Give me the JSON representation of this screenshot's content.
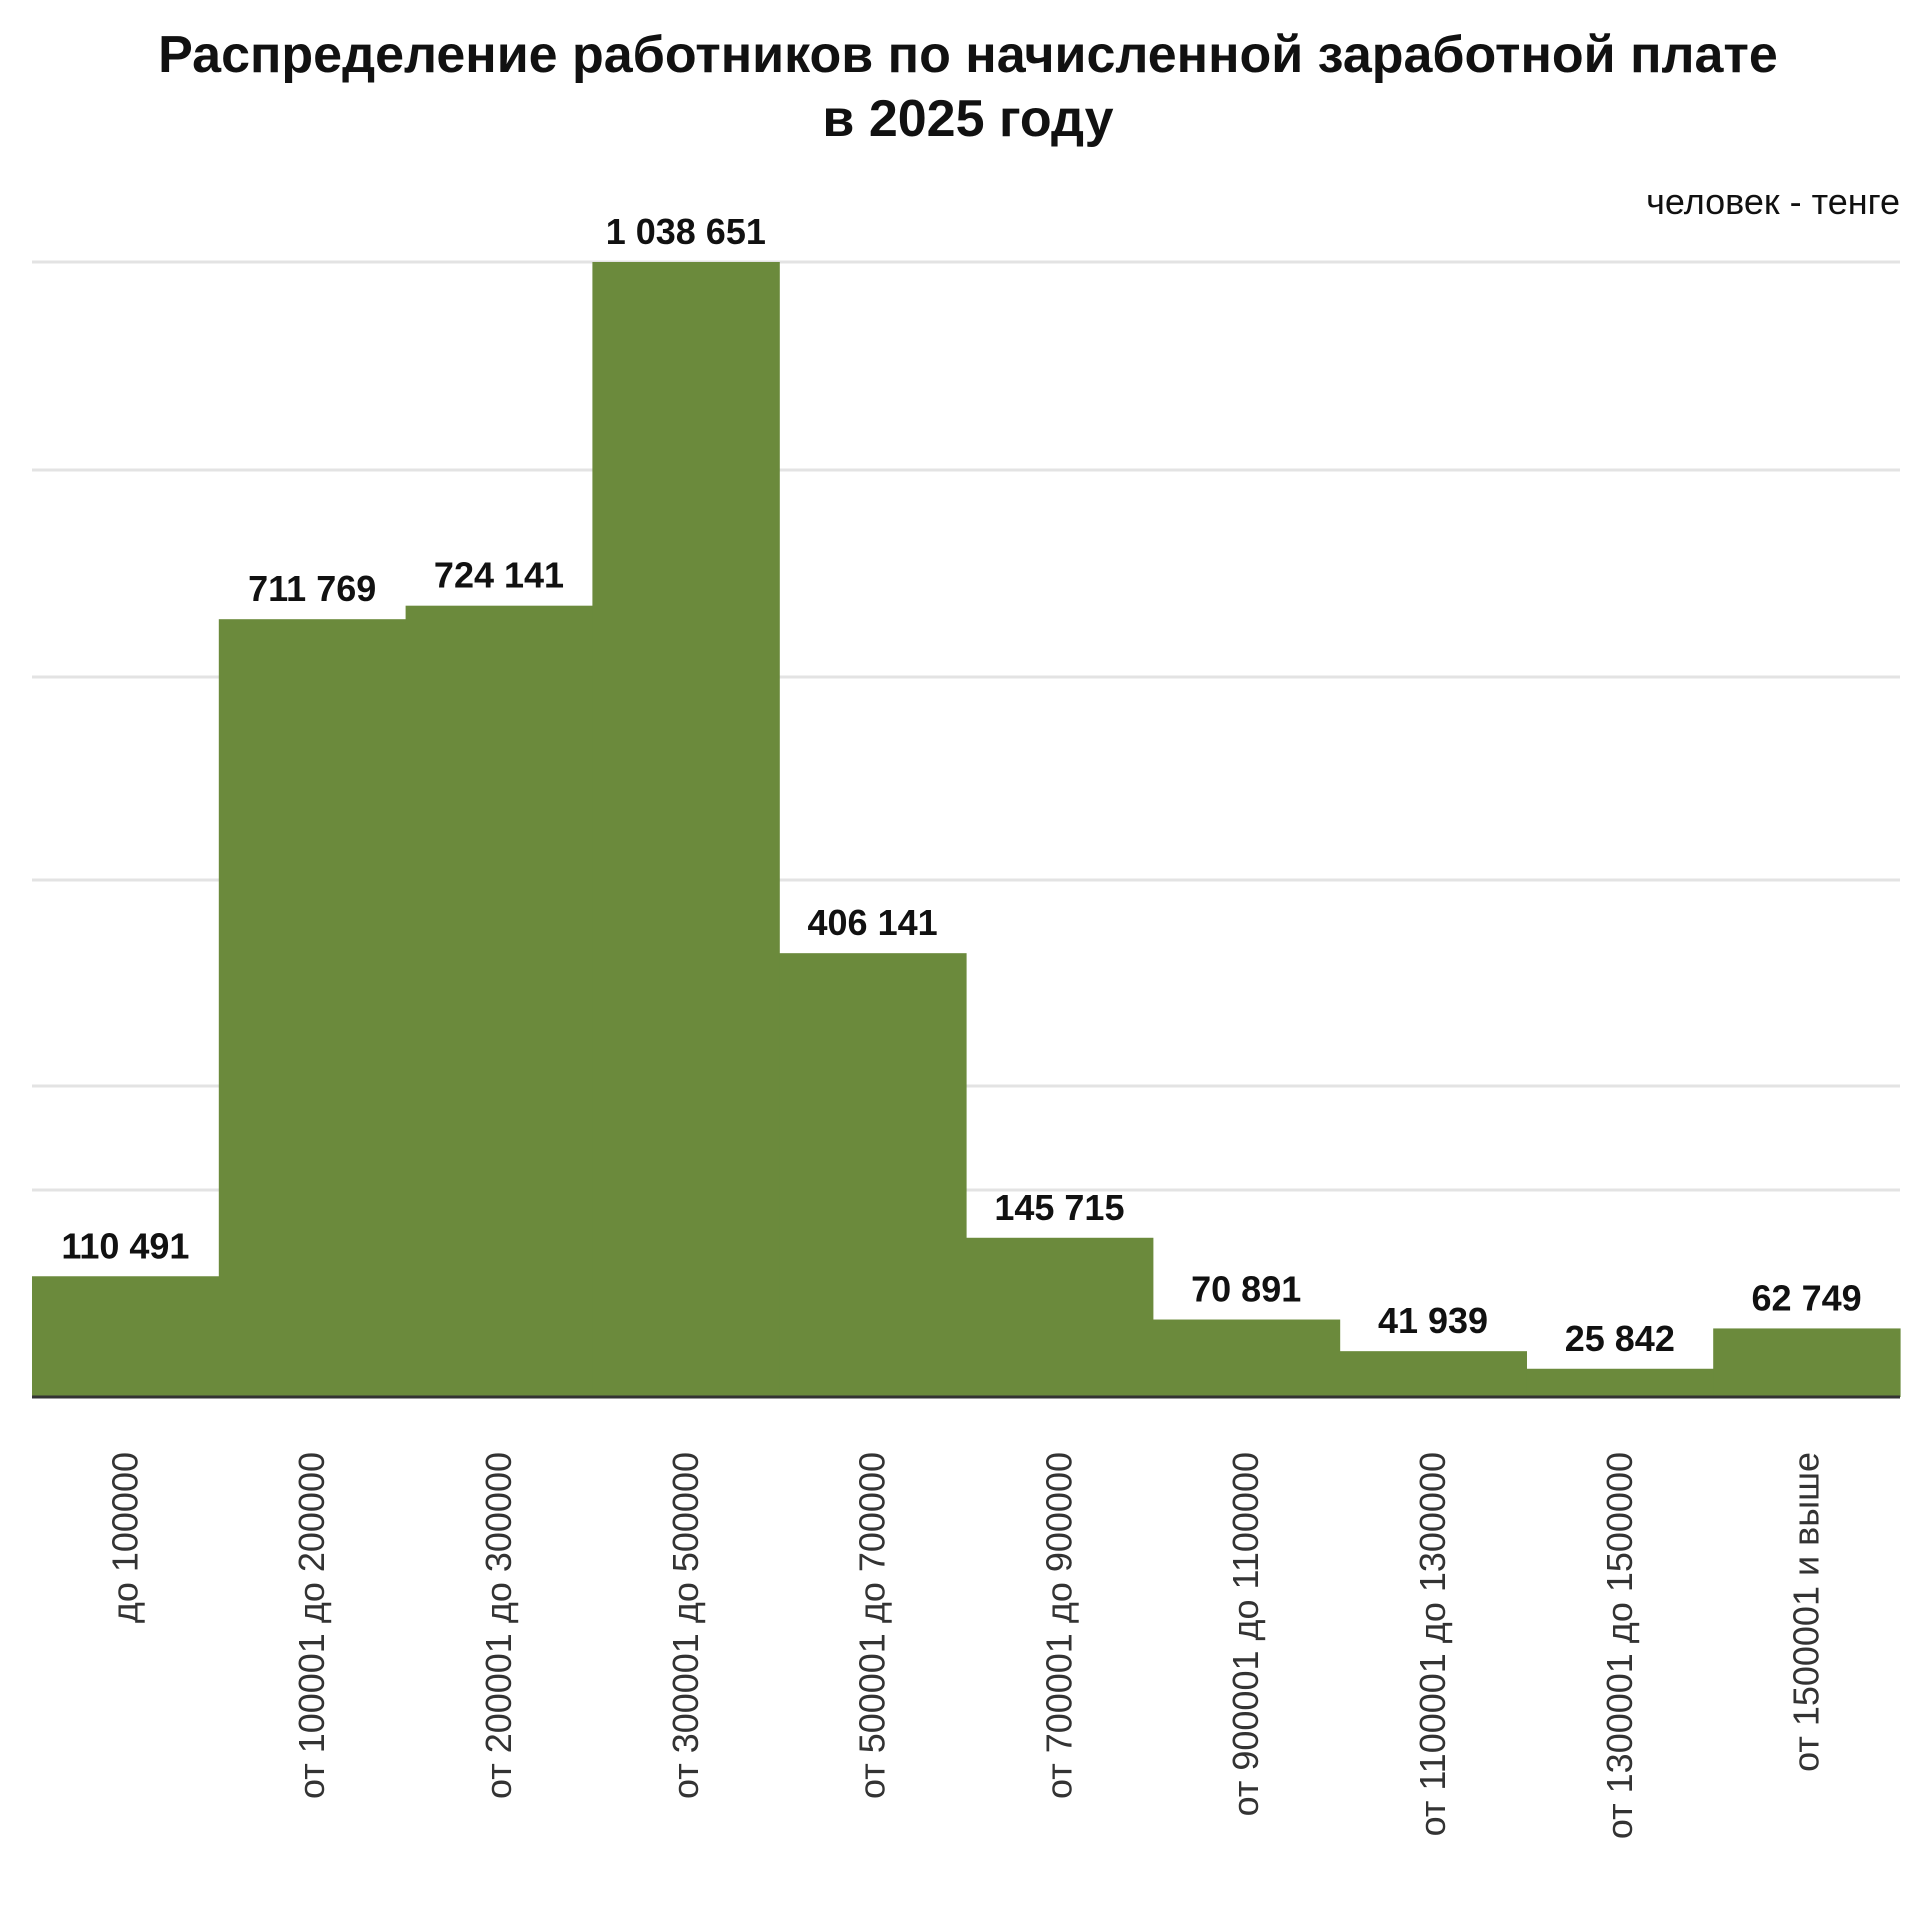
{
  "chart_data": {
    "type": "bar",
    "title_line1": "Распределение работников по начисленной заработной плате",
    "title_line2": "в 2025 году",
    "unit_note": "человек - тенге",
    "xlabel": "",
    "ylabel": "",
    "grid": true,
    "ylim": [
      0,
      1100000
    ],
    "categories": [
      "до 100000",
      "от 100001 до 200000",
      "от 200001 до 300000",
      "от 300001 до 500000",
      "от 500001 до 700000",
      "от 700001 до 900000",
      "от 900001 до 1100000",
      "от 1100001 до 1300000",
      "от 1300001 до 1500000",
      "от 1500001 и выше"
    ],
    "values": [
      110491,
      711769,
      724141,
      1038651,
      406141,
      145715,
      70891,
      41939,
      25842,
      62749
    ],
    "value_labels": [
      "110 491",
      "711 769",
      "724 141",
      "1 038 651",
      "406 141",
      "145 715",
      "70 891",
      "41 939",
      "25 842",
      "62 749"
    ],
    "bar_color": "#6b8a3c",
    "grid_color": "#e3e3e3"
  }
}
